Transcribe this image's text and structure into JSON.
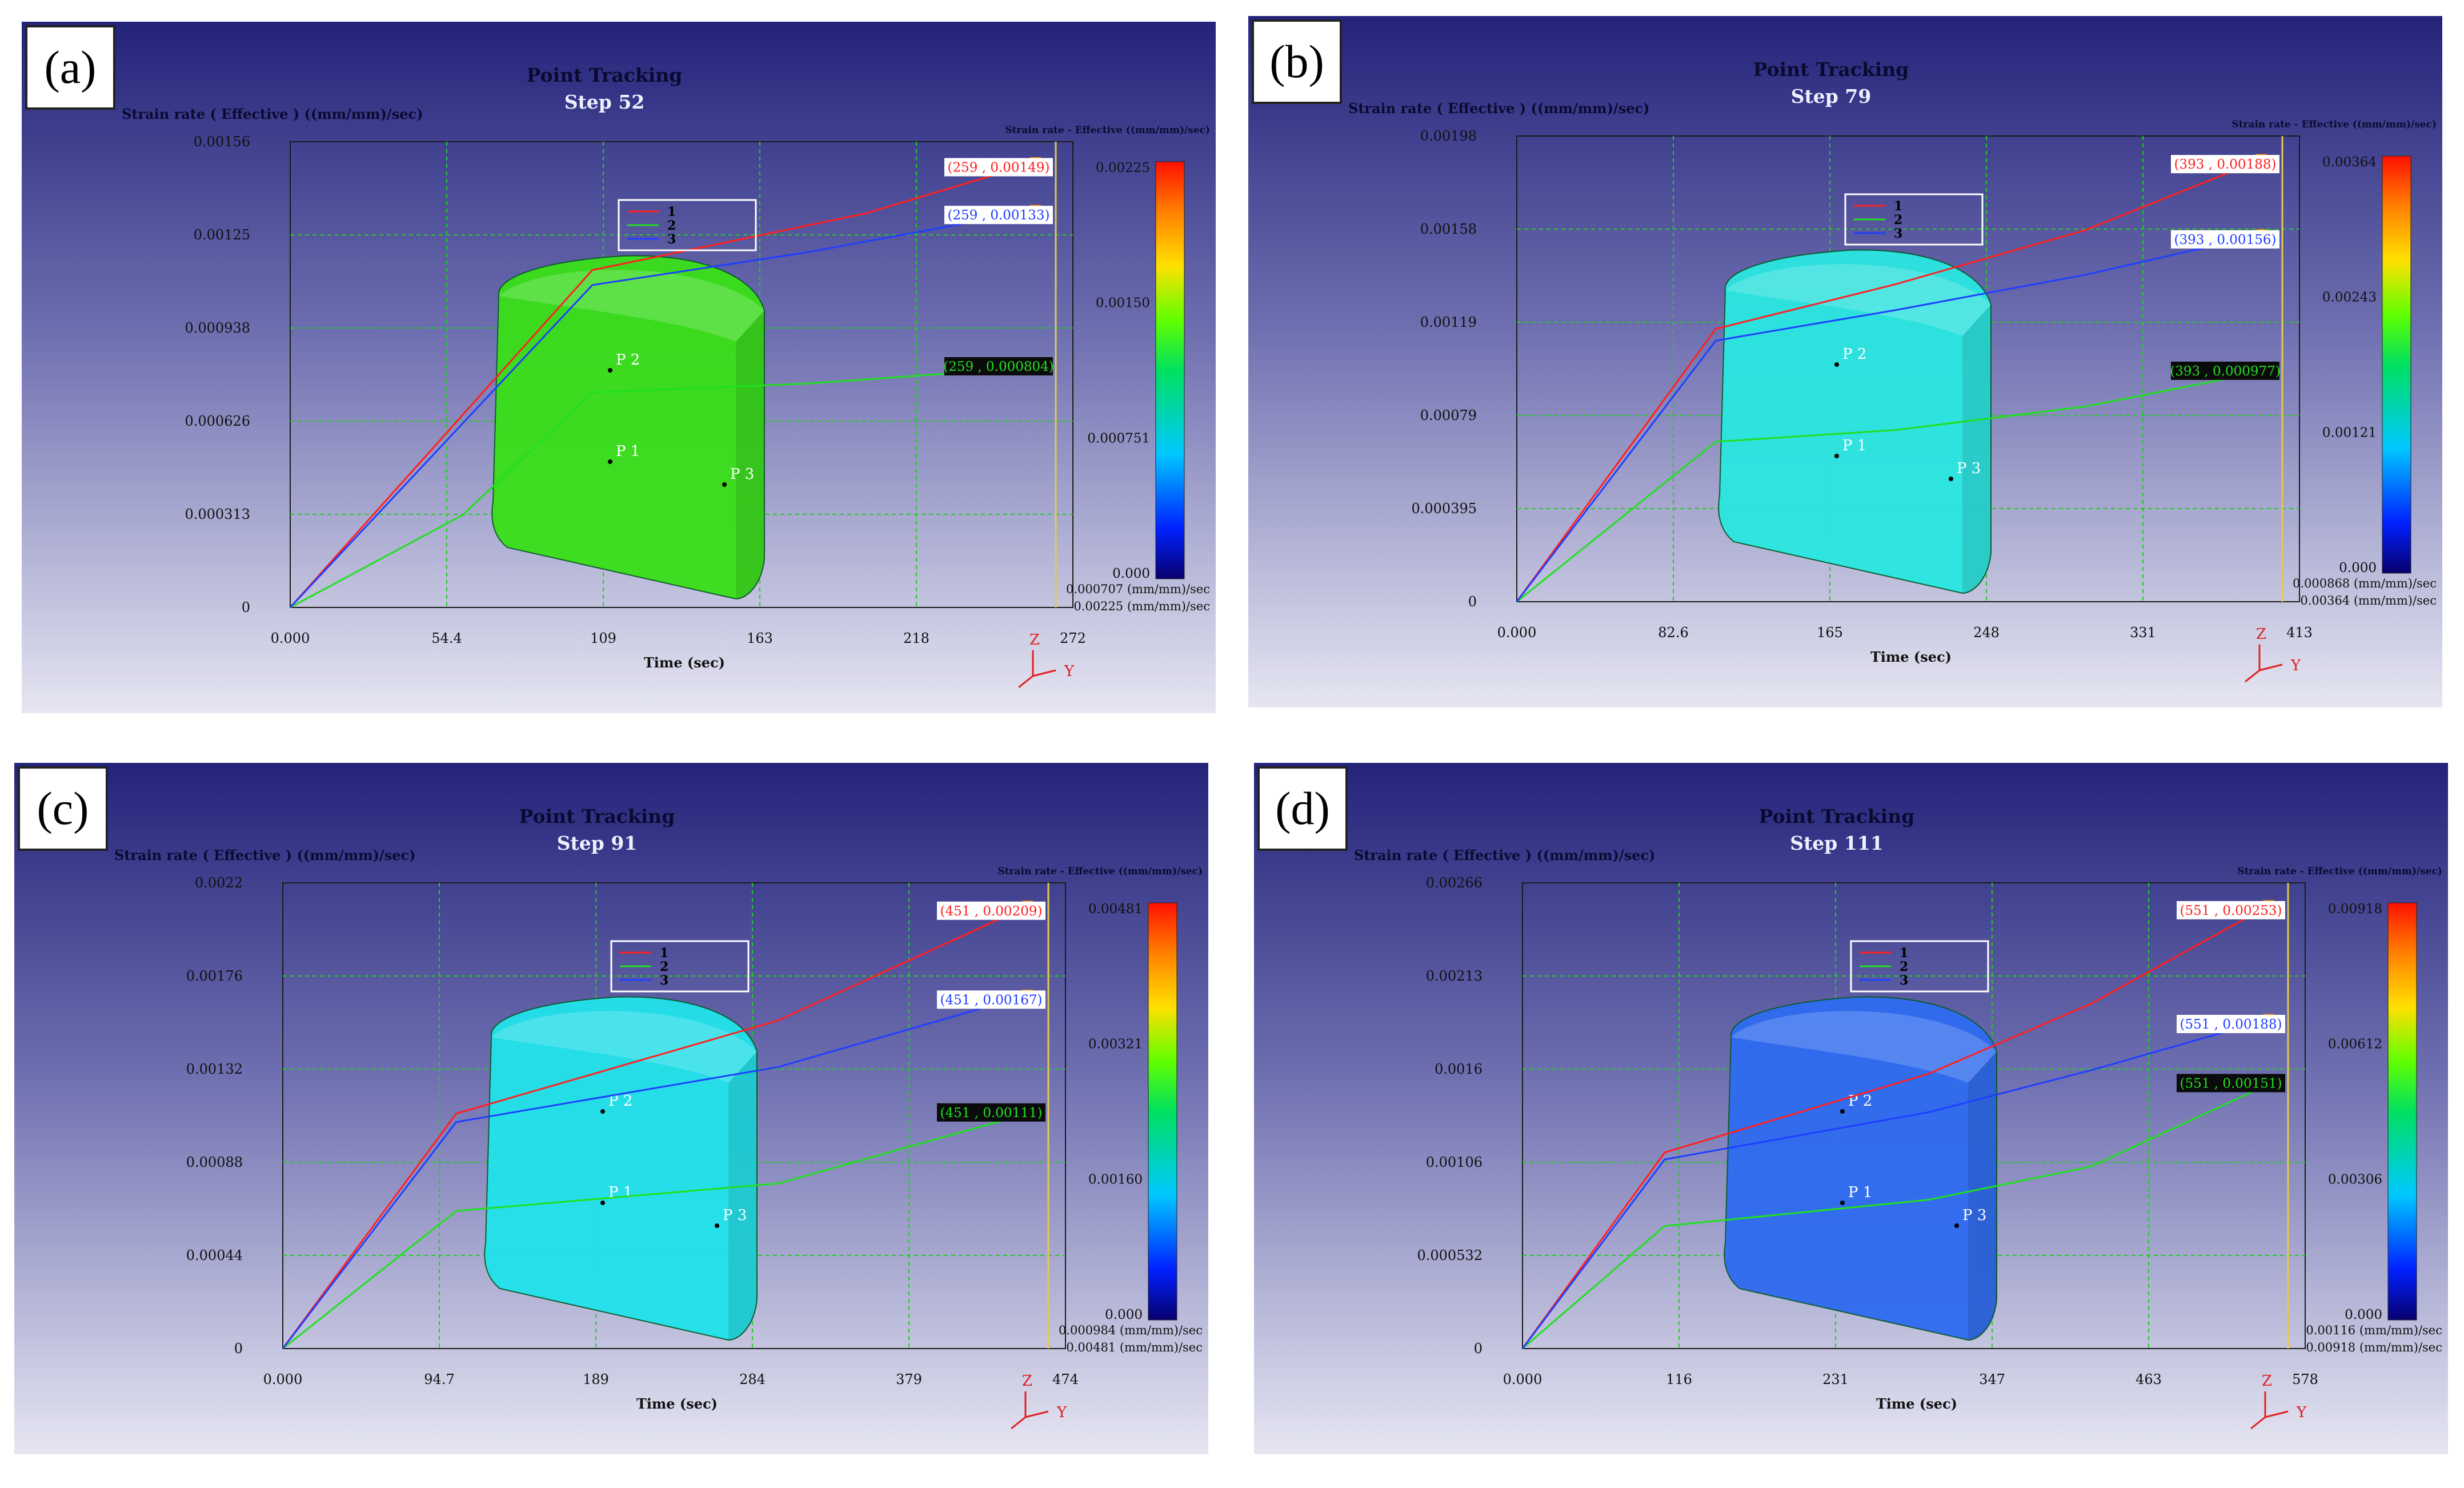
{
  "panels": [
    {
      "id": "a",
      "label": "(a)",
      "chart_data": {
        "type": "line",
        "title": "Point Tracking",
        "subtitle": "Step   52",
        "ylabel": "Strain rate ( Effective )  ((mm/mm)/sec)",
        "xlabel": "Time (sec)",
        "xlim": [
          0,
          272
        ],
        "ylim": [
          0,
          0.00156
        ],
        "x_ticks": [
          "0.000",
          "54.4",
          "109",
          "163",
          "218",
          "272"
        ],
        "y_ticks": [
          "0",
          "0.000313",
          "0.000626",
          "0.000938",
          "0.00125",
          "0.00156"
        ],
        "series": [
          {
            "name": "1",
            "color": "#ff2020",
            "x": [
              0,
              105,
              150,
              200,
              259
            ],
            "y": [
              0,
              0.00113,
              0.00122,
              0.00132,
              0.00149
            ]
          },
          {
            "name": "2",
            "color": "#20e020",
            "x": [
              0,
              60,
              105,
              180,
              259
            ],
            "y": [
              0,
              0.00031,
              0.00072,
              0.00075,
              0.000804
            ]
          },
          {
            "name": "3",
            "color": "#1f3fff",
            "x": [
              0,
              105,
              180,
              259
            ],
            "y": [
              0,
              0.00108,
              0.00119,
              0.00133
            ]
          }
        ],
        "value_labels": [
          {
            "text": "(259 , 0.00149)",
            "series": "1"
          },
          {
            "text": "(259 , 0.00133)",
            "series": "3"
          },
          {
            "text": "(259 , 0.000804)",
            "series": "2"
          }
        ],
        "cursor_x": 272,
        "legend_placement": "top-center",
        "grid": true,
        "colorbar": {
          "title": "Strain rate - Effective ((mm/mm)/sec)",
          "ticks": [
            "0.00225",
            "0.00150",
            "0.000751",
            "0.000"
          ],
          "min_note": "0.000707 (mm/mm)/sec",
          "max_note": "0.00225 (mm/mm)/sec"
        },
        "model": {
          "color": "#3adf1a",
          "points": [
            "P 1",
            "P 2",
            "P 3"
          ]
        }
      }
    },
    {
      "id": "b",
      "label": "(b)",
      "chart_data": {
        "type": "line",
        "title": "Point Tracking",
        "subtitle": "Step   79",
        "ylabel": "Strain rate ( Effective )  ((mm/mm)/sec)",
        "xlabel": "Time (sec)",
        "xlim": [
          0,
          413
        ],
        "ylim": [
          0,
          0.00198
        ],
        "x_ticks": [
          "0.000",
          "82.6",
          "165",
          "248",
          "331",
          "413"
        ],
        "y_ticks": [
          "0",
          "0.000395",
          "0.00079",
          "0.00119",
          "0.00158",
          "0.00198"
        ],
        "series": [
          {
            "name": "1",
            "color": "#ff2020",
            "x": [
              0,
              105,
              200,
              300,
              393
            ],
            "y": [
              0,
              0.00116,
              0.00135,
              0.00158,
              0.00188
            ]
          },
          {
            "name": "2",
            "color": "#20e020",
            "x": [
              0,
              105,
              200,
              300,
              393
            ],
            "y": [
              0,
              0.00068,
              0.00073,
              0.00083,
              0.000977
            ]
          },
          {
            "name": "3",
            "color": "#1f3fff",
            "x": [
              0,
              105,
              200,
              300,
              393
            ],
            "y": [
              0,
              0.00111,
              0.00124,
              0.00139,
              0.00156
            ]
          }
        ],
        "value_labels": [
          {
            "text": "(393 , 0.00188)",
            "series": "1"
          },
          {
            "text": "(393 , 0.00156)",
            "series": "3"
          },
          {
            "text": "(393 , 0.000977)",
            "series": "2"
          }
        ],
        "cursor_x": 413,
        "legend_placement": "top-center",
        "grid": true,
        "colorbar": {
          "title": "Strain rate - Effective ((mm/mm)/sec)",
          "ticks": [
            "0.00364",
            "0.00243",
            "0.00121",
            "0.000"
          ],
          "min_note": "0.000868 (mm/mm)/sec",
          "max_note": "0.00364 (mm/mm)/sec"
        },
        "model": {
          "color": "#2be6e0",
          "points": [
            "P 1",
            "P 2",
            "P 3"
          ]
        }
      }
    },
    {
      "id": "c",
      "label": "(c)",
      "chart_data": {
        "type": "line",
        "title": "Point Tracking",
        "subtitle": "Step   91",
        "ylabel": "Strain rate ( Effective )  ((mm/mm)/sec)",
        "xlabel": "Time (sec)",
        "xlim": [
          0,
          474
        ],
        "ylim": [
          0,
          0.0022
        ],
        "x_ticks": [
          "0.000",
          "94.7",
          "189",
          "284",
          "379",
          "474"
        ],
        "y_ticks": [
          "0",
          "0.00044",
          "0.00088",
          "0.00132",
          "0.00176",
          "0.0022"
        ],
        "series": [
          {
            "name": "1",
            "color": "#ff2020",
            "x": [
              0,
              105,
              300,
              451
            ],
            "y": [
              0,
              0.00111,
              0.00155,
              0.00209
            ]
          },
          {
            "name": "2",
            "color": "#20e020",
            "x": [
              0,
              105,
              300,
              451
            ],
            "y": [
              0,
              0.00065,
              0.00078,
              0.00111
            ]
          },
          {
            "name": "3",
            "color": "#1f3fff",
            "x": [
              0,
              105,
              300,
              451
            ],
            "y": [
              0,
              0.00107,
              0.00133,
              0.00167
            ]
          }
        ],
        "value_labels": [
          {
            "text": "(451 , 0.00209)",
            "series": "1"
          },
          {
            "text": "(451 , 0.00167)",
            "series": "3"
          },
          {
            "text": "(451 , 0.00111)",
            "series": "2"
          }
        ],
        "cursor_x": 474,
        "legend_placement": "top-center",
        "grid": true,
        "colorbar": {
          "title": "Strain rate - Effective ((mm/mm)/sec)",
          "ticks": [
            "0.00481",
            "0.00321",
            "0.00160",
            "0.000"
          ],
          "min_note": "0.000984 (mm/mm)/sec",
          "max_note": "0.00481 (mm/mm)/sec"
        },
        "model": {
          "color": "#22e2ea",
          "points": [
            "P 1",
            "P 2",
            "P 3"
          ]
        }
      }
    },
    {
      "id": "d",
      "label": "(d)",
      "chart_data": {
        "type": "line",
        "title": "Point Tracking",
        "subtitle": "Step   111",
        "ylabel": "Strain rate ( Effective )  ((mm/mm)/sec)",
        "xlabel": "Time (sec)",
        "xlim": [
          0,
          578
        ],
        "ylim": [
          0,
          0.00266
        ],
        "x_ticks": [
          "0.000",
          "116",
          "231",
          "347",
          "463",
          "578"
        ],
        "y_ticks": [
          "0",
          "0.000532",
          "0.00106",
          "0.0016",
          "0.00213",
          "0.00266"
        ],
        "series": [
          {
            "name": "1",
            "color": "#ff2020",
            "x": [
              0,
              105,
              300,
              420,
              551
            ],
            "y": [
              0,
              0.00112,
              0.00157,
              0.00197,
              0.00253
            ]
          },
          {
            "name": "2",
            "color": "#20e020",
            "x": [
              0,
              105,
              300,
              420,
              551
            ],
            "y": [
              0,
              0.0007,
              0.00085,
              0.00104,
              0.00151
            ]
          },
          {
            "name": "3",
            "color": "#1f3fff",
            "x": [
              0,
              105,
              300,
              420,
              551
            ],
            "y": [
              0,
              0.00108,
              0.00135,
              0.00159,
              0.00188
            ]
          }
        ],
        "value_labels": [
          {
            "text": "(551 , 0.00253)",
            "series": "1"
          },
          {
            "text": "(551 , 0.00188)",
            "series": "3"
          },
          {
            "text": "(551 , 0.00151)",
            "series": "2"
          }
        ],
        "cursor_x": 578,
        "legend_placement": "top-center",
        "grid": true,
        "colorbar": {
          "title": "Strain rate - Effective ((mm/mm)/sec)",
          "ticks": [
            "0.00918",
            "0.00612",
            "0.00306",
            "0.000"
          ],
          "min_note": "0.00116 (mm/mm)/sec",
          "max_note": "0.00918 (mm/mm)/sec"
        },
        "model": {
          "color": "#2f6cf0",
          "points": [
            "P 1",
            "P 2",
            "P 3"
          ]
        }
      }
    }
  ],
  "axis_triad": {
    "z": "Z",
    "y": "Y"
  },
  "colors": {
    "bg_top": "#23237a",
    "bg_bottom": "#e6e6f2",
    "grid": "#22cc22",
    "text_dark": "#000000",
    "subtitle": "#eef0ff"
  }
}
